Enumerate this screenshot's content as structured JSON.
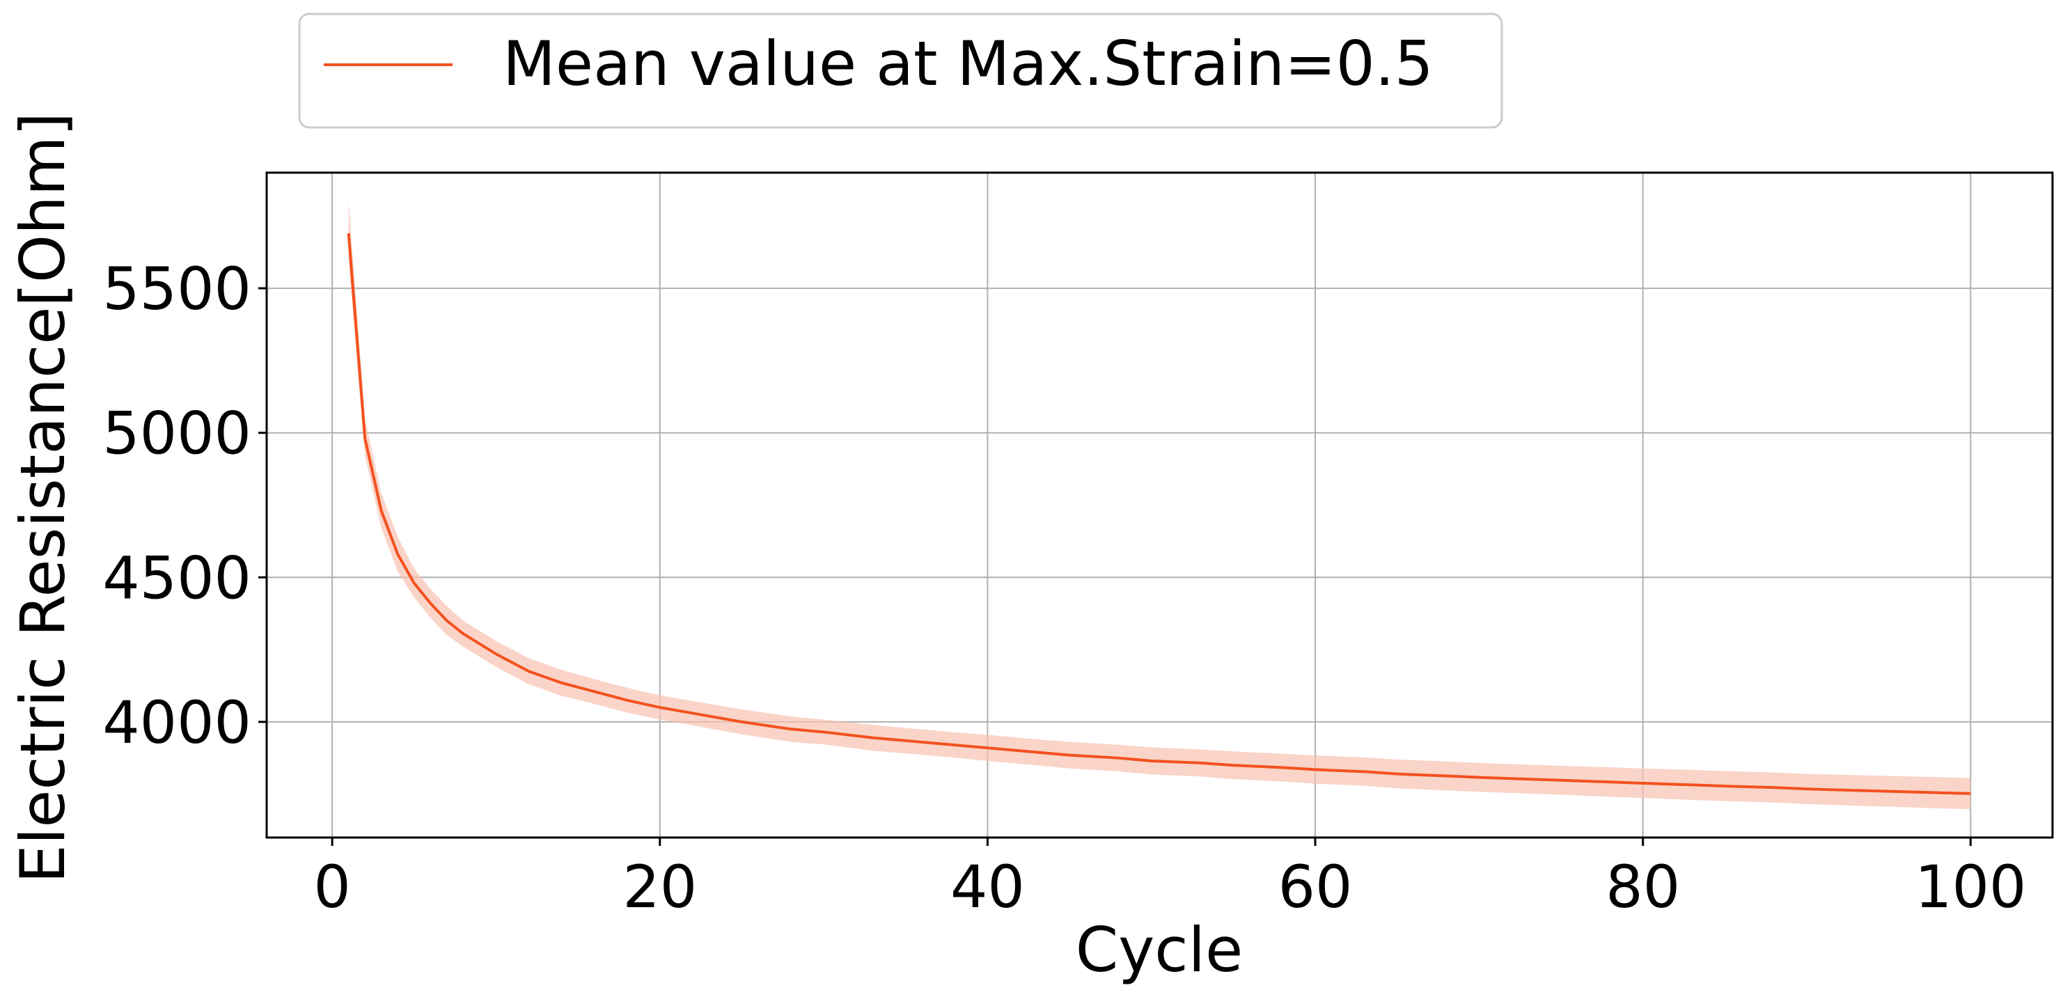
{
  "chart_data": {
    "type": "line",
    "xlabel": "Cycle",
    "ylabel": "Electric Resistance[Ohm]",
    "xlim": [
      -4,
      105
    ],
    "ylim": [
      3600,
      5900
    ],
    "x_ticks": [
      0,
      20,
      40,
      60,
      80,
      100
    ],
    "y_ticks": [
      4000,
      4500,
      5000,
      5500
    ],
    "grid": true,
    "legend_position": "top-left, above plot",
    "series": [
      {
        "name": "Mean value at Max.Strain=0.5",
        "color": "#f4511e",
        "band_color": "#f8c2b0",
        "x": [
          1,
          2,
          3,
          4,
          5,
          6,
          7,
          8,
          9,
          10,
          12,
          14,
          16,
          18,
          20,
          22,
          25,
          28,
          30,
          33,
          35,
          38,
          40,
          43,
          45,
          48,
          50,
          53,
          55,
          58,
          60,
          63,
          65,
          68,
          70,
          73,
          75,
          78,
          80,
          83,
          85,
          88,
          90,
          93,
          95,
          98,
          100
        ],
        "mean": [
          5690,
          4980,
          4730,
          4580,
          4480,
          4410,
          4350,
          4305,
          4270,
          4235,
          4175,
          4135,
          4105,
          4075,
          4050,
          4030,
          4000,
          3975,
          3965,
          3945,
          3935,
          3920,
          3910,
          3895,
          3885,
          3875,
          3865,
          3858,
          3850,
          3842,
          3835,
          3828,
          3820,
          3813,
          3808,
          3802,
          3798,
          3792,
          3788,
          3782,
          3778,
          3773,
          3768,
          3763,
          3760,
          3755,
          3752
        ],
        "upper": [
          5800,
          5050,
          4790,
          4640,
          4530,
          4460,
          4400,
          4350,
          4315,
          4280,
          4220,
          4180,
          4148,
          4118,
          4092,
          4072,
          4043,
          4019,
          4008,
          3990,
          3979,
          3964,
          3955,
          3940,
          3931,
          3921,
          3912,
          3905,
          3898,
          3890,
          3884,
          3877,
          3870,
          3863,
          3858,
          3852,
          3848,
          3843,
          3839,
          3834,
          3830,
          3825,
          3820,
          3816,
          3813,
          3809,
          3806
        ],
        "lower": [
          5600,
          4920,
          4670,
          4520,
          4430,
          4360,
          4300,
          4260,
          4225,
          4190,
          4130,
          4090,
          4062,
          4032,
          4008,
          3988,
          3957,
          3931,
          3922,
          3900,
          3891,
          3876,
          3865,
          3850,
          3839,
          3829,
          3818,
          3811,
          3802,
          3794,
          3786,
          3779,
          3770,
          3763,
          3758,
          3752,
          3748,
          3741,
          3737,
          3730,
          3726,
          3721,
          3716,
          3710,
          3707,
          3701,
          3698
        ]
      }
    ]
  }
}
